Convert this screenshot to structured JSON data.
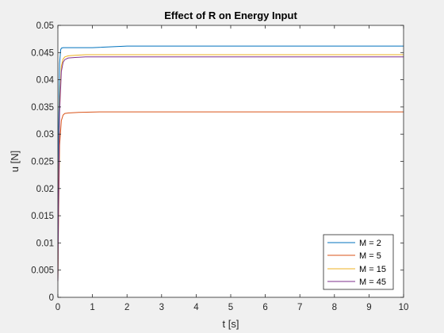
{
  "chart_data": {
    "type": "line",
    "title": "Effect of R on Energy Input",
    "xlabel": "t [s]",
    "ylabel": "u [N]",
    "xlim": [
      0,
      10
    ],
    "ylim": [
      0,
      0.05
    ],
    "xticks": [
      0,
      1,
      2,
      3,
      4,
      5,
      6,
      7,
      8,
      9,
      10
    ],
    "xtick_labels": [
      "0",
      "1",
      "2",
      "3",
      "4",
      "5",
      "6",
      "7",
      "8",
      "9",
      "10"
    ],
    "yticks": [
      0,
      0.005,
      0.01,
      0.015,
      0.02,
      0.025,
      0.03,
      0.035,
      0.04,
      0.045,
      0.05
    ],
    "ytick_labels": [
      "0",
      "0.005",
      "0.01",
      "0.015",
      "0.02",
      "0.025",
      "0.03",
      "0.035",
      "0.04",
      "0.045",
      "0.05"
    ],
    "grid": false,
    "legend_position": "bottom-right",
    "series": [
      {
        "name": "M = 2",
        "color": "#0072BD",
        "x": [
          0,
          0.02,
          0.05,
          0.08,
          0.1,
          0.15,
          0.3,
          1.0,
          2.0,
          4.0,
          10
        ],
        "y": [
          0.003,
          0.03,
          0.043,
          0.0455,
          0.0458,
          0.0459,
          0.0459,
          0.0459,
          0.0462,
          0.0462,
          0.0462
        ]
      },
      {
        "name": "M = 5",
        "color": "#D95319",
        "x": [
          0,
          0.02,
          0.05,
          0.1,
          0.15,
          0.2,
          0.3,
          0.6,
          1.2,
          2.0,
          10
        ],
        "y": [
          0.003,
          0.015,
          0.028,
          0.0325,
          0.0335,
          0.0338,
          0.0339,
          0.034,
          0.0341,
          0.0341,
          0.0341
        ]
      },
      {
        "name": "M = 15",
        "color": "#EDB120",
        "x": [
          0,
          0.02,
          0.05,
          0.1,
          0.15,
          0.2,
          0.3,
          0.5,
          0.8,
          1.5,
          10
        ],
        "y": [
          0.003,
          0.02,
          0.036,
          0.0425,
          0.0438,
          0.0442,
          0.0444,
          0.0445,
          0.0446,
          0.0446,
          0.0446
        ]
      },
      {
        "name": "M = 45",
        "color": "#7E2F8E",
        "x": [
          0,
          0.02,
          0.05,
          0.1,
          0.15,
          0.2,
          0.3,
          0.5,
          0.8,
          1.5,
          10
        ],
        "y": [
          0.003,
          0.018,
          0.034,
          0.0415,
          0.0432,
          0.0437,
          0.044,
          0.0441,
          0.0442,
          0.0442,
          0.0442
        ]
      }
    ]
  }
}
